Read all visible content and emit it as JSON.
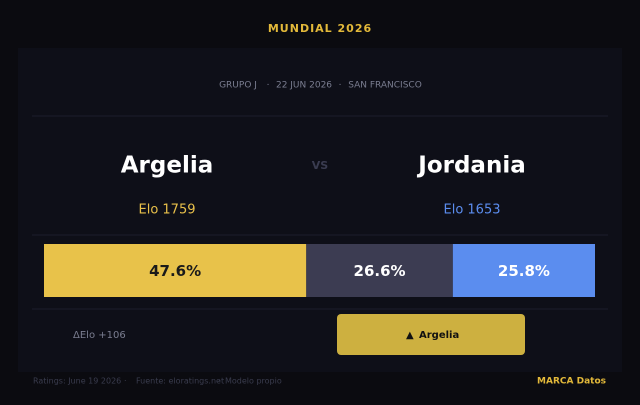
{
  "header": {
    "title": "MUNDIAL  2026"
  },
  "match": {
    "group": "GRUPO  J",
    "date": "22 JUN 2026",
    "venue": "SAN FRANCISCO",
    "home": "Argelia",
    "away": "Jordania",
    "vs": "VS",
    "home_elo": "Elo  1759",
    "away_elo": "Elo  1653",
    "delta": "ΔElo  +106",
    "pick": "Argelia"
  },
  "chart_data": {
    "type": "stacked-bar",
    "values": [
      47.6,
      26.6,
      25.8
    ],
    "value_labels": [
      "47.6%",
      "26.6%",
      "25.8%"
    ],
    "colors": [
      "#e8c24a",
      "#3c3c52",
      "#5b8def"
    ],
    "xlim": [
      0,
      100
    ]
  },
  "footer": {
    "notes": [
      "Ratings: June 19 2026",
      "Fuente: eloratings.net",
      "Modelo propio"
    ],
    "brand": "MARCA Datos"
  }
}
